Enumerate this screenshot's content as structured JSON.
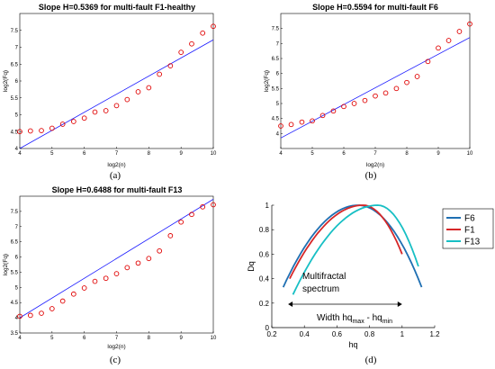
{
  "chart_data": [
    {
      "type": "scatter",
      "panel_label": "(a)",
      "title": "Slope H=0.5369 for multi-fault F1-healthy",
      "xlabel": "log2(n)",
      "ylabel": "log2(Fq)",
      "xlim": [
        4,
        10
      ],
      "ylim": [
        4,
        8
      ],
      "xticks": [
        4,
        5,
        6,
        7,
        8,
        9,
        10
      ],
      "yticks": [
        4,
        4.5,
        5,
        5.5,
        6,
        6.5,
        7,
        7.5
      ],
      "points_x": [
        4.0,
        4.33,
        4.67,
        5.0,
        5.33,
        5.67,
        6.0,
        6.33,
        6.67,
        7.0,
        7.33,
        7.67,
        8.0,
        8.33,
        8.67,
        9.0,
        9.33,
        9.67,
        10.0
      ],
      "points_y": [
        4.5,
        4.52,
        4.53,
        4.6,
        4.72,
        4.8,
        4.9,
        5.08,
        5.12,
        5.27,
        5.45,
        5.68,
        5.8,
        6.2,
        6.45,
        6.85,
        7.1,
        7.42,
        7.62
      ],
      "fit_line": {
        "x": [
          4,
          10
        ],
        "y": [
          4.0,
          7.22
        ]
      }
    },
    {
      "type": "scatter",
      "panel_label": "(b)",
      "title": "Slope H=0.5594 for multi-fault F6",
      "xlabel": "log2(n)",
      "ylabel": "log2(Fq)",
      "xlim": [
        4,
        10
      ],
      "ylim": [
        3.5,
        8
      ],
      "xticks": [
        4,
        5,
        6,
        7,
        8,
        9,
        10
      ],
      "yticks": [
        4,
        4.5,
        5,
        5.5,
        6,
        6.5,
        7,
        7.5
      ],
      "points_x": [
        4.0,
        4.33,
        4.67,
        5.0,
        5.33,
        5.67,
        6.0,
        6.33,
        6.67,
        7.0,
        7.33,
        7.67,
        8.0,
        8.33,
        8.67,
        9.0,
        9.33,
        9.67,
        10.0
      ],
      "points_y": [
        4.25,
        4.3,
        4.38,
        4.42,
        4.6,
        4.75,
        4.9,
        5.0,
        5.1,
        5.25,
        5.35,
        5.5,
        5.7,
        5.9,
        6.4,
        6.85,
        7.1,
        7.4,
        7.65
      ],
      "fit_line": {
        "x": [
          4,
          10
        ],
        "y": [
          3.85,
          7.2
        ]
      }
    },
    {
      "type": "scatter",
      "panel_label": "(c)",
      "title": "Slope H=0.6488 for multi-fault F13",
      "xlabel": "log2(n)",
      "ylabel": "log2(Fq)",
      "xlim": [
        4,
        10
      ],
      "ylim": [
        3.5,
        8
      ],
      "xticks": [
        4,
        5,
        6,
        7,
        8,
        9,
        10
      ],
      "yticks": [
        3.5,
        4,
        4.5,
        5,
        5.5,
        6,
        6.5,
        7,
        7.5
      ],
      "points_x": [
        4.0,
        4.33,
        4.67,
        5.0,
        5.33,
        5.67,
        6.0,
        6.33,
        6.67,
        7.0,
        7.33,
        7.67,
        8.0,
        8.33,
        8.67,
        9.0,
        9.33,
        9.67,
        10.0
      ],
      "points_y": [
        4.05,
        4.08,
        4.15,
        4.3,
        4.55,
        4.78,
        4.98,
        5.2,
        5.3,
        5.45,
        5.65,
        5.8,
        5.95,
        6.2,
        6.7,
        7.15,
        7.4,
        7.65,
        7.72
      ],
      "fit_line": {
        "x": [
          4,
          10
        ],
        "y": [
          4.0,
          7.9
        ]
      }
    },
    {
      "type": "line",
      "panel_label": "(d)",
      "title": "",
      "xlabel": "hq",
      "ylabel": "Dq",
      "xlim": [
        0.2,
        1.2
      ],
      "ylim": [
        0,
        1
      ],
      "xticks": [
        0.2,
        0.4,
        0.6,
        0.8,
        1,
        1.2
      ],
      "yticks": [
        0,
        0.2,
        0.4,
        0.6,
        0.8,
        1
      ],
      "series": [
        {
          "name": "F6",
          "color": "#1f6fb2",
          "hmin": 0.27,
          "hpeak": 0.73,
          "hmax": 1.12,
          "dmin_left": 0.33,
          "dmin_right": 0.33
        },
        {
          "name": "F1",
          "color": "#d62728",
          "hmin": 0.31,
          "hpeak": 0.76,
          "hmax": 1.0,
          "dmin_left": 0.4,
          "dmin_right": 0.6
        },
        {
          "name": "F13",
          "color": "#17bfc4",
          "hmin": 0.33,
          "hpeak": 0.85,
          "hmax": 1.1,
          "dmin_left": 0.27,
          "dmin_right": 0.5
        }
      ],
      "annotations": {
        "spectrum_label_line1": "Multifractal",
        "spectrum_label_line2": "spectrum",
        "width_label": "Width hq",
        "width_sub_max": "max",
        "width_dash": " - hq",
        "width_sub_min": "min"
      }
    }
  ]
}
